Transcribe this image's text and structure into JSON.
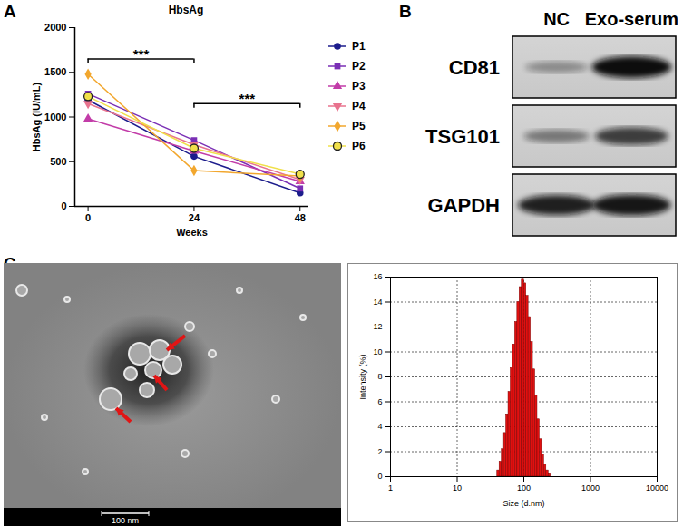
{
  "chart_data": [
    {
      "type": "line",
      "panel": "A",
      "title": "HbsAg",
      "x_label": "Weeks",
      "y_label": "HbsAg (IU/mL)",
      "x": [
        0,
        24,
        48
      ],
      "xlim": [
        -3,
        50
      ],
      "xticks": [
        0,
        24,
        48
      ],
      "ylim": [
        0,
        2000
      ],
      "yticks": [
        0,
        500,
        1000,
        1500,
        2000
      ],
      "grid": false,
      "legend": "right",
      "series": [
        {
          "name": "P1",
          "color": "#1c1c8c",
          "marker": "circle",
          "values": [
            1190,
            560,
            150
          ]
        },
        {
          "name": "P2",
          "color": "#7a2fb5",
          "marker": "square",
          "values": [
            1260,
            740,
            200
          ]
        },
        {
          "name": "P3",
          "color": "#c23ca8",
          "marker": "triangle",
          "values": [
            980,
            620,
            280
          ]
        },
        {
          "name": "P4",
          "color": "#e8738e",
          "marker": "triangle-down",
          "values": [
            1150,
            690,
            300
          ]
        },
        {
          "name": "P5",
          "color": "#f2a72e",
          "marker": "diamond",
          "values": [
            1480,
            400,
            340
          ]
        },
        {
          "name": "P6",
          "color": "#f0e04a",
          "marker": "circle_outlined",
          "values": [
            1230,
            650,
            360
          ]
        }
      ],
      "annotations": [
        {
          "text": "***",
          "from": 0,
          "to": 24,
          "y": 1650
        },
        {
          "text": "***",
          "from": 24,
          "to": 48,
          "y": 1150
        }
      ]
    },
    {
      "type": "histogram",
      "x_label": "Size (d.nm)",
      "y_label": "Intensity (%)",
      "log": "x",
      "grid": true,
      "color": "#e01010",
      "xlim": [
        1,
        10000
      ],
      "xticks": [
        1,
        10,
        100,
        1000,
        10000
      ],
      "ylim": [
        0,
        16
      ],
      "yticks": [
        0,
        2,
        4,
        6,
        8,
        10,
        12,
        14,
        16
      ],
      "bins": [
        40,
        43.2,
        46.7,
        50.4,
        54.4,
        58.8,
        63.5,
        68.5,
        74.0,
        79.9,
        86.3,
        93.2,
        100.7,
        108.8,
        117.5,
        126.9,
        137.0,
        148.0,
        159.8,
        172.6,
        186.4,
        201.3,
        217.4,
        234.8,
        253.6
      ],
      "values": [
        0.5,
        1.2,
        2.2,
        3.5,
        5.0,
        6.8,
        8.7,
        10.6,
        12.4,
        14.0,
        15.2,
        15.8,
        15.5,
        14.5,
        12.8,
        10.8,
        8.6,
        6.5,
        4.6,
        3.0,
        1.8,
        1.0,
        0.5,
        0.2
      ]
    }
  ],
  "western_blot": {
    "panel": "B",
    "columns": [
      "NC",
      "Exo-serum"
    ],
    "rows": [
      {
        "name": "CD81",
        "intensity": [
          0.35,
          1.0
        ]
      },
      {
        "name": "TSG101",
        "intensity": [
          0.45,
          0.75
        ]
      },
      {
        "name": "GAPDH",
        "intensity": [
          0.9,
          0.95
        ]
      }
    ]
  },
  "micrograph": {
    "panel": "C",
    "scale_bar": "100 nm"
  }
}
